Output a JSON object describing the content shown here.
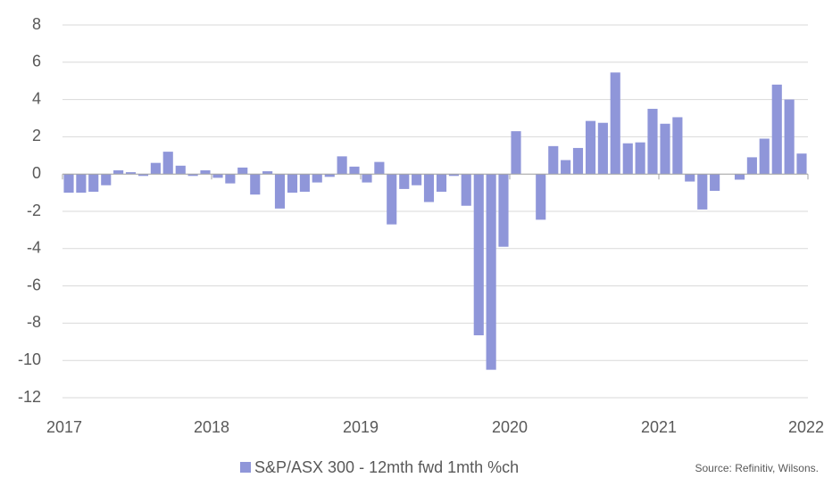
{
  "chart_data": {
    "type": "bar",
    "series": [
      {
        "name": "S&P/ASX 300 - 12mth fwd 1mth %ch",
        "color": "#8f96d9",
        "values": [
          -1.0,
          -1.0,
          -0.95,
          -0.6,
          0.2,
          0.1,
          -0.1,
          0.6,
          1.2,
          0.45,
          -0.1,
          0.2,
          -0.2,
          -0.5,
          0.35,
          -1.1,
          0.15,
          -1.85,
          -1.0,
          -0.95,
          -0.45,
          -0.15,
          0.95,
          0.4,
          -0.45,
          0.65,
          -2.7,
          -0.8,
          -0.6,
          -1.5,
          -0.95,
          -0.1,
          -1.7,
          -8.65,
          -10.5,
          -3.9,
          2.3,
          0,
          -2.45,
          1.5,
          0.75,
          1.4,
          2.85,
          2.75,
          5.45,
          1.65,
          1.7,
          3.5,
          2.7,
          3.05,
          -0.4,
          -1.9,
          -0.9,
          0,
          -0.3,
          0.9,
          1.9,
          4.8,
          4.0,
          1.1
        ]
      }
    ],
    "x": [
      2017.042,
      2017.125,
      2017.208,
      2017.292,
      2017.375,
      2017.458,
      2017.542,
      2017.625,
      2017.708,
      2017.792,
      2017.875,
      2017.958,
      2018.042,
      2018.125,
      2018.208,
      2018.292,
      2018.375,
      2018.458,
      2018.542,
      2018.625,
      2018.708,
      2018.792,
      2018.875,
      2018.958,
      2019.042,
      2019.125,
      2019.208,
      2019.292,
      2019.375,
      2019.458,
      2019.542,
      2019.625,
      2019.708,
      2019.792,
      2019.875,
      2019.958,
      2020.042,
      2020.125,
      2020.208,
      2020.292,
      2020.375,
      2020.458,
      2020.542,
      2020.625,
      2020.708,
      2020.792,
      2020.875,
      2020.958,
      2021.042,
      2021.125,
      2021.208,
      2021.292,
      2021.375,
      2021.458,
      2021.542,
      2021.625,
      2021.708,
      2021.792,
      2021.875,
      2021.958
    ],
    "xlim": [
      2017,
      2022
    ],
    "xticks": [
      2017,
      2018,
      2019,
      2020,
      2021,
      2022
    ],
    "ylim": [
      -12,
      8
    ],
    "yticks": [
      -12,
      -10,
      -8,
      -6,
      -4,
      -2,
      0,
      2,
      4,
      6,
      8
    ],
    "grid": true,
    "legend": "bottom",
    "source": "Source: Refinitiv, Wilsons."
  }
}
